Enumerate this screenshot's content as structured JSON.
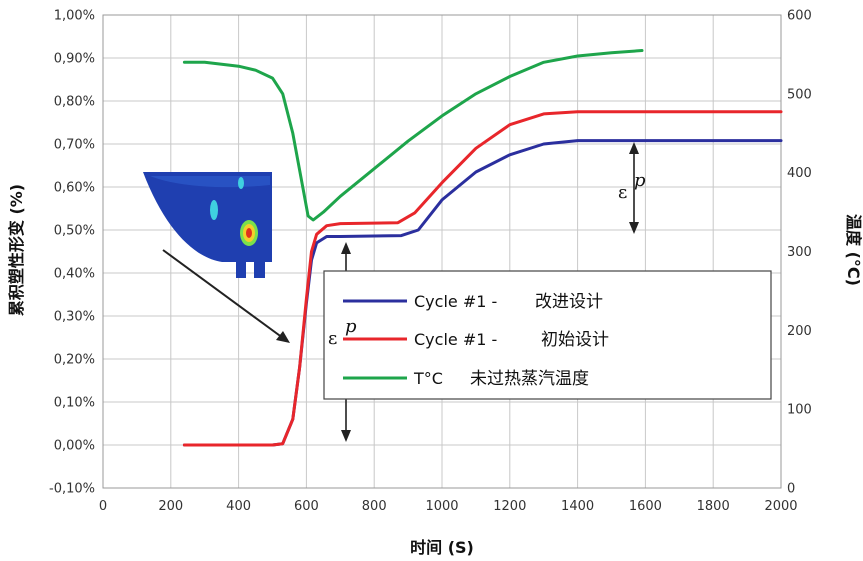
{
  "chart_data": {
    "type": "line",
    "x_label": "时间 (S)",
    "y_left_label": "累积塑性形变 (%)",
    "y_right_label": "温度 (°C)",
    "xlim": [
      0,
      2000
    ],
    "x_ticks": [
      "0",
      "200",
      "400",
      "600",
      "800",
      "1000",
      "1200",
      "1400",
      "1600",
      "1800",
      "2000"
    ],
    "y_left_lim": [
      -0.1,
      1.0
    ],
    "y_left_ticks": [
      "-0,10%",
      "0,00%",
      "0,10%",
      "0,20%",
      "0,30%",
      "0,40%",
      "0,50%",
      "0,60%",
      "0,70%",
      "0,80%",
      "0,90%",
      "1,00%"
    ],
    "y_right_lim": [
      0,
      600
    ],
    "y_right_ticks": [
      "0",
      "100",
      "200",
      "300",
      "400",
      "500",
      "600"
    ],
    "grid": true,
    "legend_position": "center",
    "series": [
      {
        "name": "Cycle #1 -",
        "name_cn": "改进设计",
        "color": "#2b2f9e",
        "axis": "left",
        "points": [
          [
            240,
            0.0
          ],
          [
            500,
            0.0
          ],
          [
            530,
            0.003
          ],
          [
            560,
            0.06
          ],
          [
            580,
            0.18
          ],
          [
            600,
            0.33
          ],
          [
            615,
            0.43
          ],
          [
            630,
            0.47
          ],
          [
            660,
            0.485
          ],
          [
            700,
            0.485
          ],
          [
            880,
            0.487
          ],
          [
            930,
            0.5
          ],
          [
            1000,
            0.57
          ],
          [
            1100,
            0.635
          ],
          [
            1200,
            0.675
          ],
          [
            1300,
            0.7
          ],
          [
            1400,
            0.708
          ],
          [
            2000,
            0.708
          ]
        ]
      },
      {
        "name": "Cycle #1 -",
        "name_cn": "初始设计",
        "color": "#e8262b",
        "axis": "left",
        "points": [
          [
            240,
            0.0
          ],
          [
            500,
            0.0
          ],
          [
            530,
            0.003
          ],
          [
            560,
            0.06
          ],
          [
            580,
            0.18
          ],
          [
            600,
            0.34
          ],
          [
            615,
            0.45
          ],
          [
            630,
            0.49
          ],
          [
            660,
            0.51
          ],
          [
            700,
            0.515
          ],
          [
            870,
            0.517
          ],
          [
            920,
            0.54
          ],
          [
            1000,
            0.61
          ],
          [
            1100,
            0.69
          ],
          [
            1200,
            0.745
          ],
          [
            1300,
            0.77
          ],
          [
            1400,
            0.775
          ],
          [
            2000,
            0.775
          ]
        ]
      },
      {
        "name": "T°C",
        "name_cn": "未过热蒸汽温度",
        "color": "#1ea54b",
        "axis": "right",
        "points": [
          [
            240,
            540
          ],
          [
            300,
            540
          ],
          [
            400,
            535
          ],
          [
            450,
            530
          ],
          [
            500,
            520
          ],
          [
            530,
            500
          ],
          [
            560,
            450
          ],
          [
            590,
            380
          ],
          [
            605,
            345
          ],
          [
            620,
            340
          ],
          [
            650,
            350
          ],
          [
            700,
            370
          ],
          [
            800,
            405
          ],
          [
            900,
            440
          ],
          [
            1000,
            472
          ],
          [
            1100,
            500
          ],
          [
            1200,
            522
          ],
          [
            1300,
            540
          ],
          [
            1400,
            548
          ],
          [
            1500,
            552
          ],
          [
            1590,
            555
          ]
        ]
      }
    ],
    "annotations": [
      "ε",
      "p",
      "ε",
      "p"
    ]
  }
}
